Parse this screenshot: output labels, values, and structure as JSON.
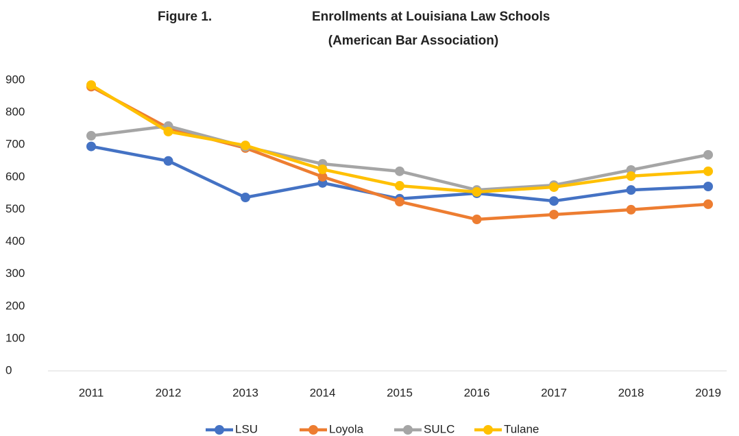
{
  "chart_data": {
    "type": "line",
    "title_prefix": "Figure 1.",
    "title": "Enrollments at Louisiana Law Schools",
    "subtitle": "(American Bar Association)",
    "categories": [
      "2011",
      "2012",
      "2013",
      "2014",
      "2015",
      "2016",
      "2017",
      "2018",
      "2019"
    ],
    "series": [
      {
        "name": "LSU",
        "color": "#4472c4",
        "values": [
          695,
          650,
          537,
          582,
          533,
          550,
          526,
          560,
          571
        ]
      },
      {
        "name": "Loyola",
        "color": "#ed7d31",
        "values": [
          880,
          752,
          690,
          601,
          524,
          469,
          484,
          499,
          516
        ]
      },
      {
        "name": "SULC",
        "color": "#a5a5a5",
        "values": [
          728,
          758,
          694,
          641,
          618,
          560,
          575,
          622,
          669
        ]
      },
      {
        "name": "Tulane",
        "color": "#ffc000",
        "values": [
          885,
          741,
          698,
          624,
          573,
          554,
          569,
          603,
          618
        ]
      }
    ],
    "ylim": [
      0,
      900
    ],
    "yticks": [
      0,
      100,
      200,
      300,
      400,
      500,
      600,
      700,
      800,
      900
    ],
    "grid": false,
    "legend": "bottom"
  }
}
